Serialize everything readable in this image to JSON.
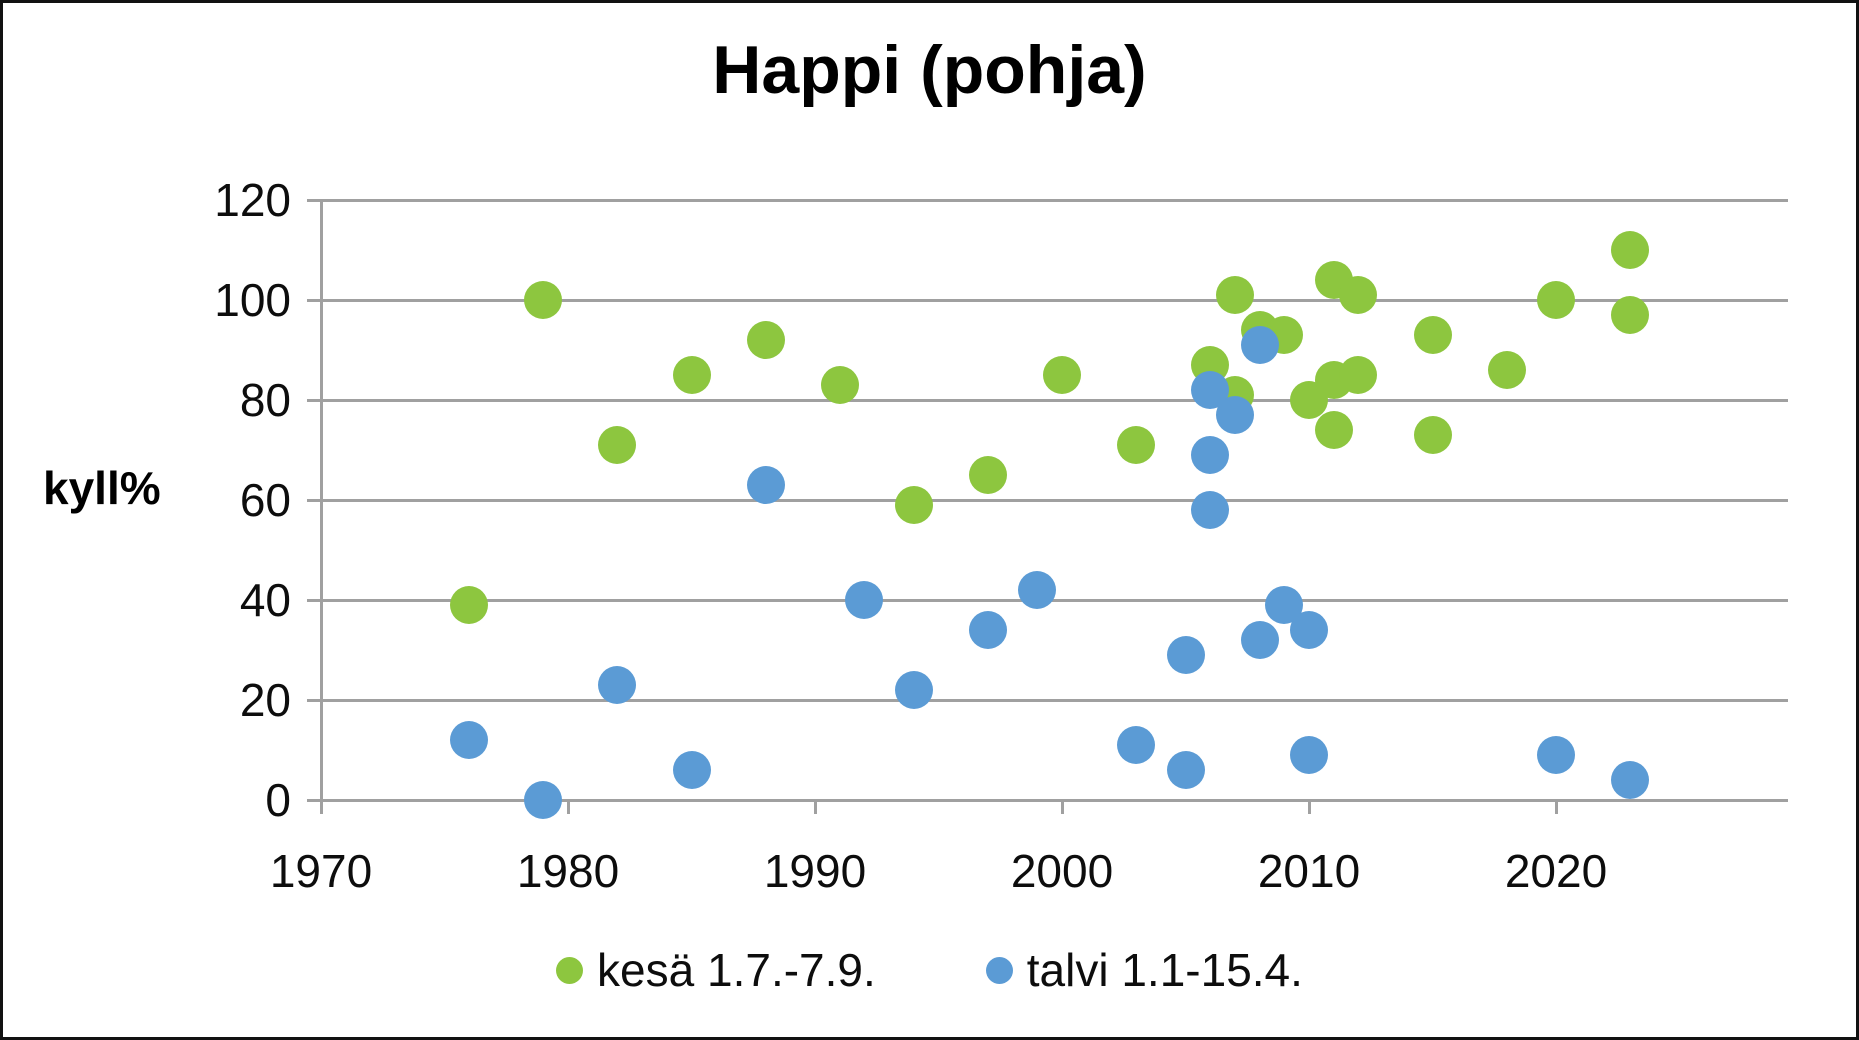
{
  "chart_data": {
    "type": "scatter",
    "title": "Happi (pohja)",
    "ylabel": "kyll%",
    "xlabel": "",
    "ylim": [
      0,
      120
    ],
    "xlim": [
      1970,
      2029
    ],
    "y_ticks": [
      0,
      20,
      40,
      60,
      80,
      100,
      120
    ],
    "x_ticks": [
      1970,
      1980,
      1990,
      2000,
      2010,
      2020
    ],
    "grid": true,
    "legend_position": "bottom",
    "grid_color": "#a0a0a0",
    "series": [
      {
        "name": "kesä 1.7.-7.9.",
        "color": "#8dc63f",
        "points": [
          [
            1976,
            39
          ],
          [
            1979,
            100
          ],
          [
            1982,
            71
          ],
          [
            1985,
            85
          ],
          [
            1988,
            92
          ],
          [
            1991,
            83
          ],
          [
            1994,
            59
          ],
          [
            1997,
            65
          ],
          [
            2000,
            85
          ],
          [
            2003,
            71
          ],
          [
            2006,
            87
          ],
          [
            2007,
            101
          ],
          [
            2007,
            81
          ],
          [
            2008,
            94
          ],
          [
            2009,
            93
          ],
          [
            2010,
            80
          ],
          [
            2011,
            104
          ],
          [
            2011,
            84
          ],
          [
            2011,
            74
          ],
          [
            2012,
            101
          ],
          [
            2012,
            85
          ],
          [
            2015,
            93
          ],
          [
            2015,
            73
          ],
          [
            2018,
            86
          ],
          [
            2020,
            100
          ],
          [
            2023,
            110
          ],
          [
            2023,
            97
          ]
        ]
      },
      {
        "name": "talvi 1.1-15.4.",
        "color": "#5b9bd5",
        "points": [
          [
            1976,
            12
          ],
          [
            1979,
            0
          ],
          [
            1982,
            23
          ],
          [
            1985,
            6
          ],
          [
            1988,
            63
          ],
          [
            1992,
            40
          ],
          [
            1994,
            22
          ],
          [
            1997,
            34
          ],
          [
            1999,
            42
          ],
          [
            2003,
            11
          ],
          [
            2005,
            29
          ],
          [
            2005,
            6
          ],
          [
            2006,
            82
          ],
          [
            2006,
            69
          ],
          [
            2006,
            58
          ],
          [
            2007,
            77
          ],
          [
            2008,
            91
          ],
          [
            2008,
            32
          ],
          [
            2009,
            39
          ],
          [
            2010,
            34
          ],
          [
            2010,
            9
          ],
          [
            2020,
            9
          ],
          [
            2023,
            4
          ]
        ]
      }
    ]
  }
}
